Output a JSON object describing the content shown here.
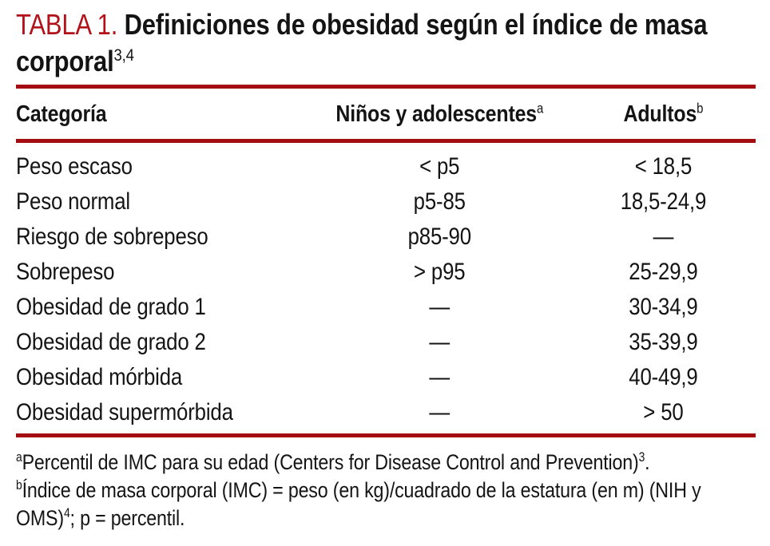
{
  "colors": {
    "accent_rule": "#a50c11",
    "title_label_red": "#b2121a",
    "text": "#141414",
    "background": "#ffffff"
  },
  "title": {
    "label": "TABLA 1.",
    "text": "Definiciones de obesidad según el índice de masa corporal",
    "superscript": "3,4"
  },
  "table": {
    "columns": [
      {
        "label": "Categoría",
        "superscript": ""
      },
      {
        "label": "Niños y adolescentes",
        "superscript": "a"
      },
      {
        "label": "Adultos",
        "superscript": "b"
      }
    ],
    "rows": [
      {
        "category": "Peso escaso",
        "children": "< p5",
        "adults": "< 18,5"
      },
      {
        "category": "Peso normal",
        "children": "p5-85",
        "adults": "18,5-24,9"
      },
      {
        "category": "Riesgo de sobrepeso",
        "children": "p85-90",
        "adults": "—"
      },
      {
        "category": "Sobrepeso",
        "children": "> p95",
        "adults": "25-29,9"
      },
      {
        "category": "Obesidad de grado 1",
        "children": "—",
        "adults": "30-34,9"
      },
      {
        "category": "Obesidad de grado 2",
        "children": "—",
        "adults": "35-39,9"
      },
      {
        "category": "Obesidad mórbida",
        "children": "—",
        "adults": "40-49,9"
      },
      {
        "category": "Obesidad supermórbida",
        "children": "—",
        "adults": "> 50"
      }
    ]
  },
  "footnotes": [
    {
      "marker": "a",
      "text": "Percentil de IMC para su edad (Centers for Disease Control and Prevention)",
      "end_superscript": "3",
      "suffix": "."
    },
    {
      "marker": "b",
      "text": "Índice de masa corporal (IMC) = peso (en kg)/cuadrado de la estatura (en m) (NIH y OMS)",
      "end_superscript": "4",
      "suffix": "; p = percentil."
    }
  ]
}
